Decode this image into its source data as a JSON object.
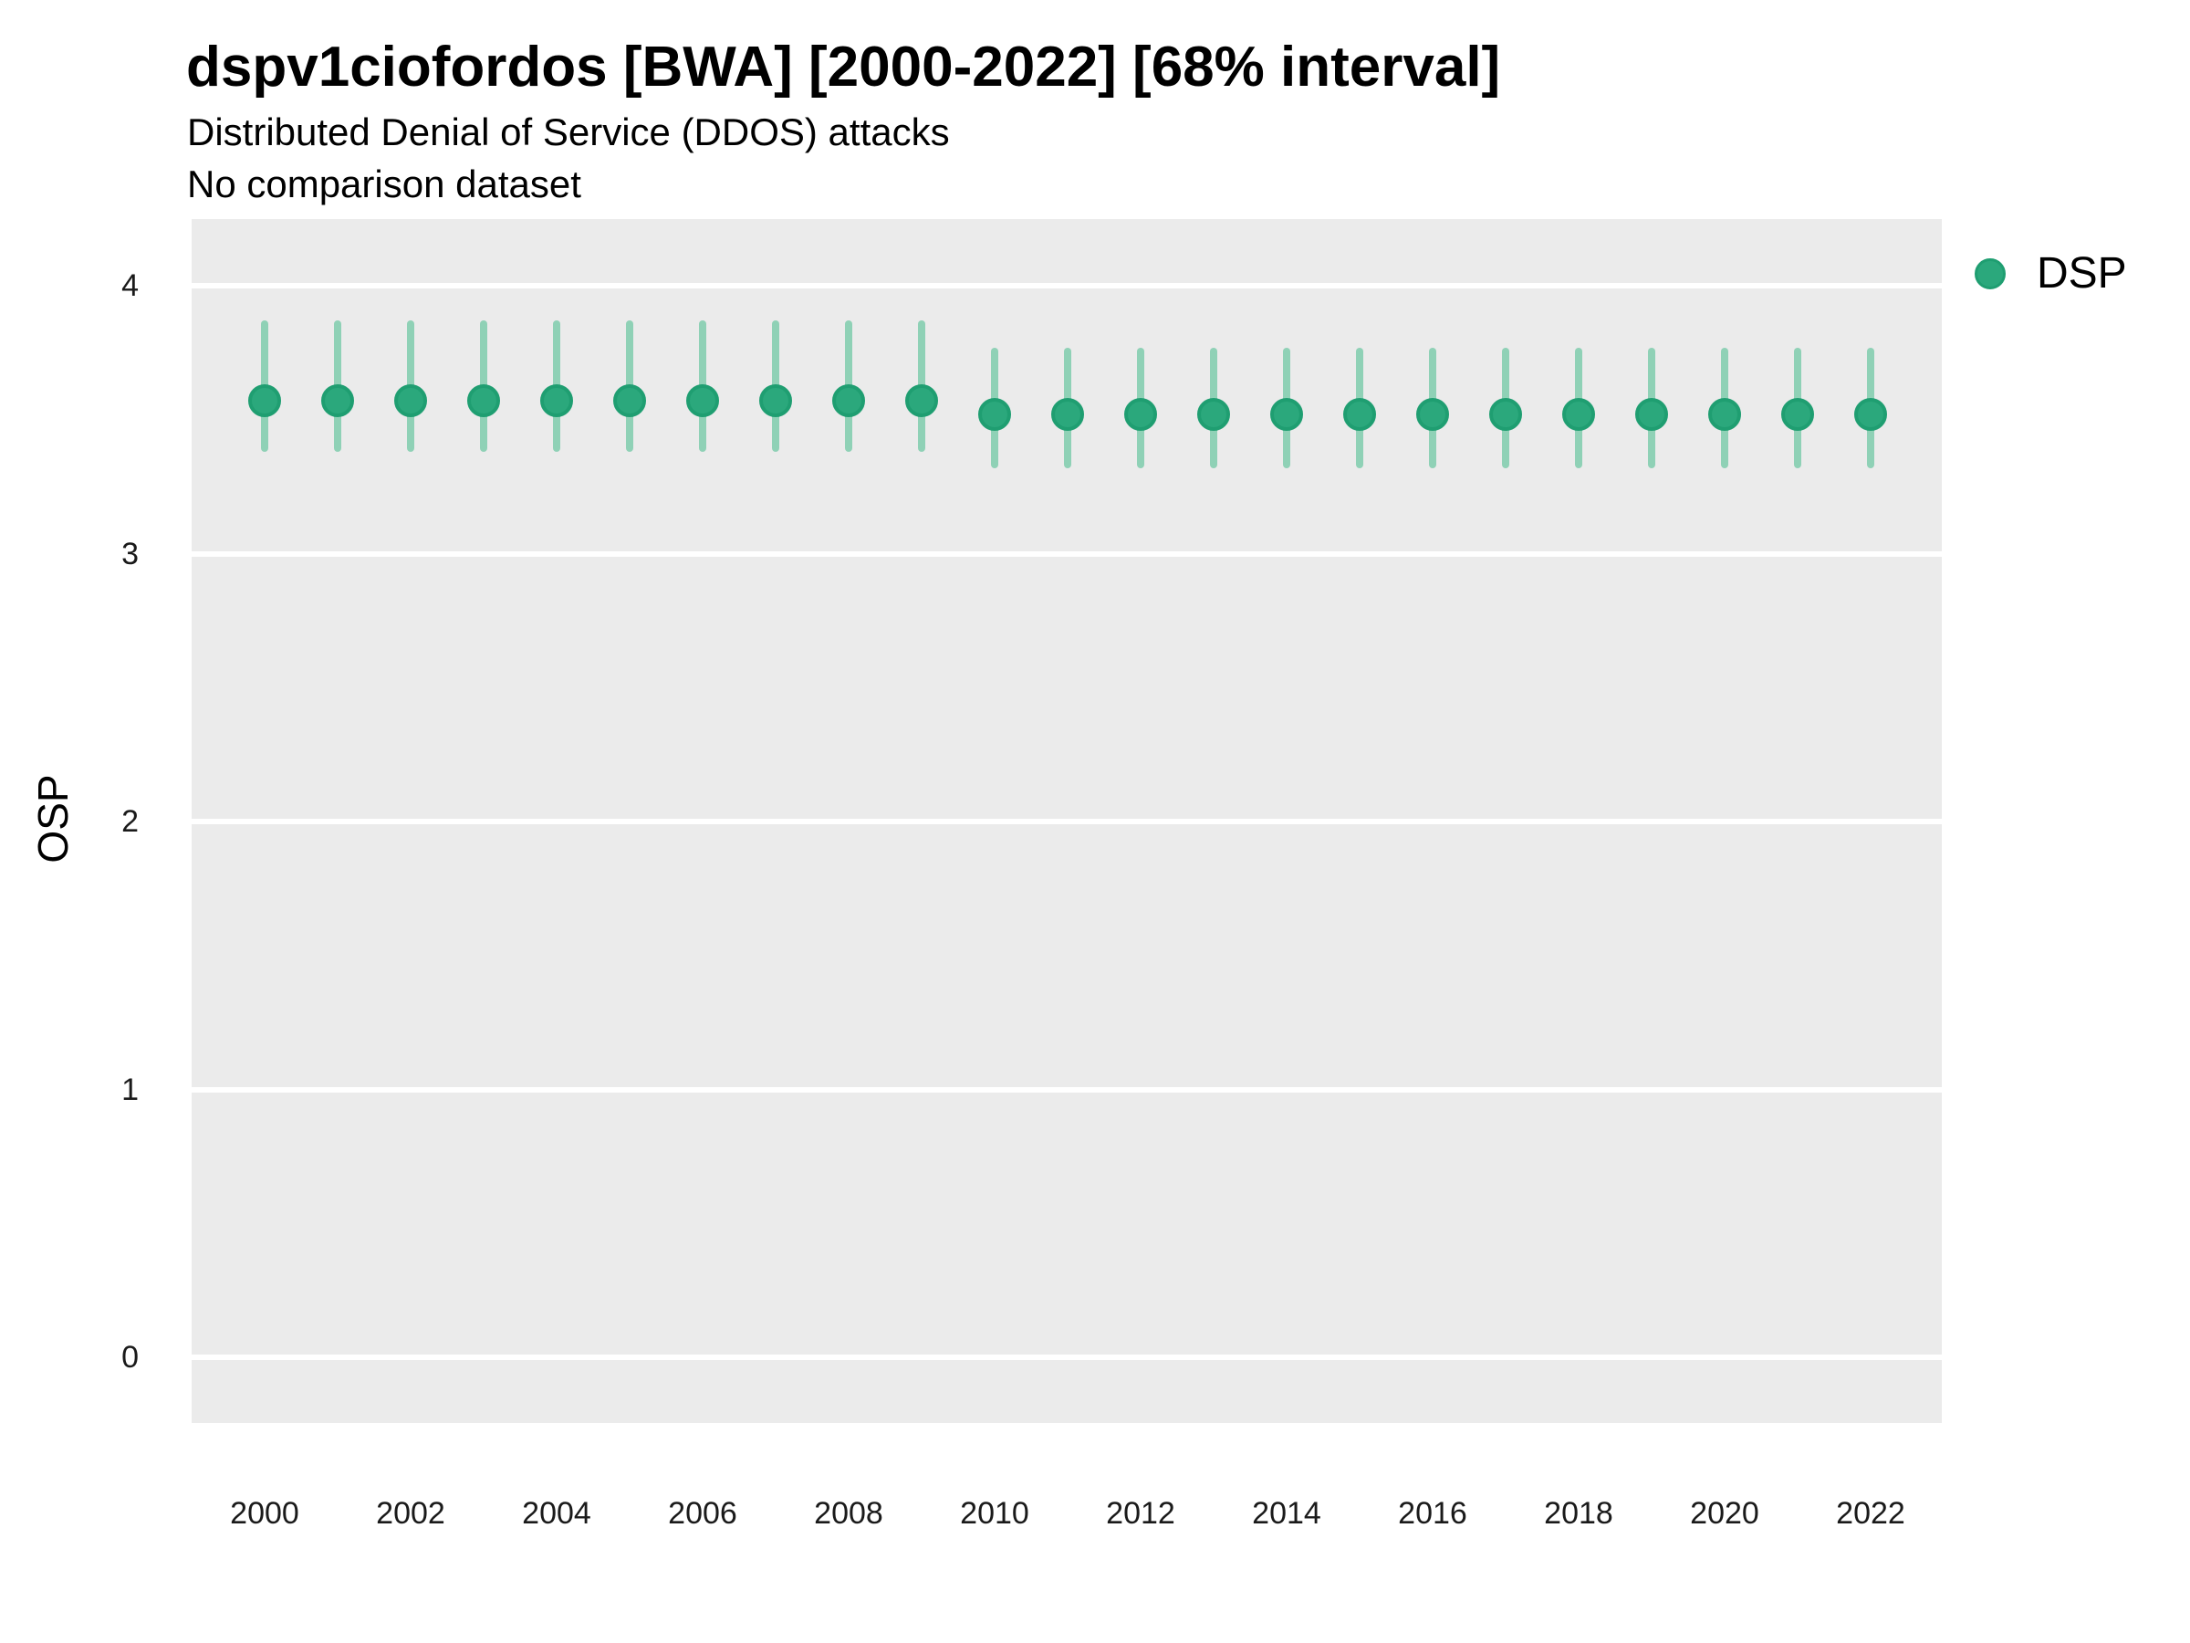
{
  "header": {
    "title": "dspv1ciofordos [BWA] [2000-2022] [68% interval]",
    "subtitle": "Distributed Denial of Service (DDOS) attacks",
    "comparison_note": "No comparison dataset"
  },
  "legend": {
    "items": [
      {
        "label": "DSP",
        "marker": "circle-icon",
        "color": "#2ba87c"
      }
    ]
  },
  "axes": {
    "y": {
      "label": "OSP",
      "tick_labels": [
        "4",
        "3",
        "2",
        "1",
        "0"
      ],
      "tick_values": [
        4,
        3,
        2,
        1,
        0
      ]
    },
    "x": {
      "label": "",
      "tick_labels": [
        "2000",
        "2002",
        "2004",
        "2006",
        "2008",
        "2010",
        "2012",
        "2014",
        "2016",
        "2018",
        "2020",
        "2022"
      ],
      "tick_values": [
        2000,
        2002,
        2004,
        2006,
        2008,
        2010,
        2012,
        2014,
        2016,
        2018,
        2020,
        2022
      ]
    }
  },
  "chart_data": {
    "type": "scatter",
    "subtype": "pointrange",
    "title": "dspv1ciofordos [BWA] [2000-2022] [68% interval]",
    "subtitle": "Distributed Denial of Service (DDOS) attacks",
    "note": "No comparison dataset",
    "interval": "68%",
    "xlabel": "",
    "ylabel": "OSP",
    "ylim": [
      -0.25,
      4.25
    ],
    "xlim": [
      1999,
      2023
    ],
    "grid": "white major gridlines on gray panel",
    "legend_position": "right",
    "series": [
      {
        "name": "DSP",
        "points": [
          {
            "year": 2000,
            "mid": 3.57,
            "lo": 3.38,
            "hi": 3.87
          },
          {
            "year": 2001,
            "mid": 3.57,
            "lo": 3.38,
            "hi": 3.87
          },
          {
            "year": 2002,
            "mid": 3.57,
            "lo": 3.38,
            "hi": 3.87
          },
          {
            "year": 2003,
            "mid": 3.57,
            "lo": 3.38,
            "hi": 3.87
          },
          {
            "year": 2004,
            "mid": 3.57,
            "lo": 3.38,
            "hi": 3.87
          },
          {
            "year": 2005,
            "mid": 3.57,
            "lo": 3.38,
            "hi": 3.87
          },
          {
            "year": 2006,
            "mid": 3.57,
            "lo": 3.38,
            "hi": 3.87
          },
          {
            "year": 2007,
            "mid": 3.57,
            "lo": 3.38,
            "hi": 3.87
          },
          {
            "year": 2008,
            "mid": 3.57,
            "lo": 3.38,
            "hi": 3.87
          },
          {
            "year": 2009,
            "mid": 3.57,
            "lo": 3.38,
            "hi": 3.87
          },
          {
            "year": 2010,
            "mid": 3.52,
            "lo": 3.32,
            "hi": 3.77
          },
          {
            "year": 2011,
            "mid": 3.52,
            "lo": 3.32,
            "hi": 3.77
          },
          {
            "year": 2012,
            "mid": 3.52,
            "lo": 3.32,
            "hi": 3.77
          },
          {
            "year": 2013,
            "mid": 3.52,
            "lo": 3.32,
            "hi": 3.77
          },
          {
            "year": 2014,
            "mid": 3.52,
            "lo": 3.32,
            "hi": 3.77
          },
          {
            "year": 2015,
            "mid": 3.52,
            "lo": 3.32,
            "hi": 3.77
          },
          {
            "year": 2016,
            "mid": 3.52,
            "lo": 3.32,
            "hi": 3.77
          },
          {
            "year": 2017,
            "mid": 3.52,
            "lo": 3.32,
            "hi": 3.77
          },
          {
            "year": 2018,
            "mid": 3.52,
            "lo": 3.32,
            "hi": 3.77
          },
          {
            "year": 2019,
            "mid": 3.52,
            "lo": 3.32,
            "hi": 3.77
          },
          {
            "year": 2020,
            "mid": 3.52,
            "lo": 3.32,
            "hi": 3.77
          },
          {
            "year": 2021,
            "mid": 3.52,
            "lo": 3.32,
            "hi": 3.77
          },
          {
            "year": 2022,
            "mid": 3.52,
            "lo": 3.32,
            "hi": 3.77
          }
        ]
      }
    ]
  },
  "colors": {
    "point_fill": "#2ba87c",
    "point_stroke": "#1f9e71",
    "interval_bar": "#8fd1b6",
    "panel_bg": "#ebebeb",
    "gridline": "#ffffff",
    "text": "#000000"
  }
}
